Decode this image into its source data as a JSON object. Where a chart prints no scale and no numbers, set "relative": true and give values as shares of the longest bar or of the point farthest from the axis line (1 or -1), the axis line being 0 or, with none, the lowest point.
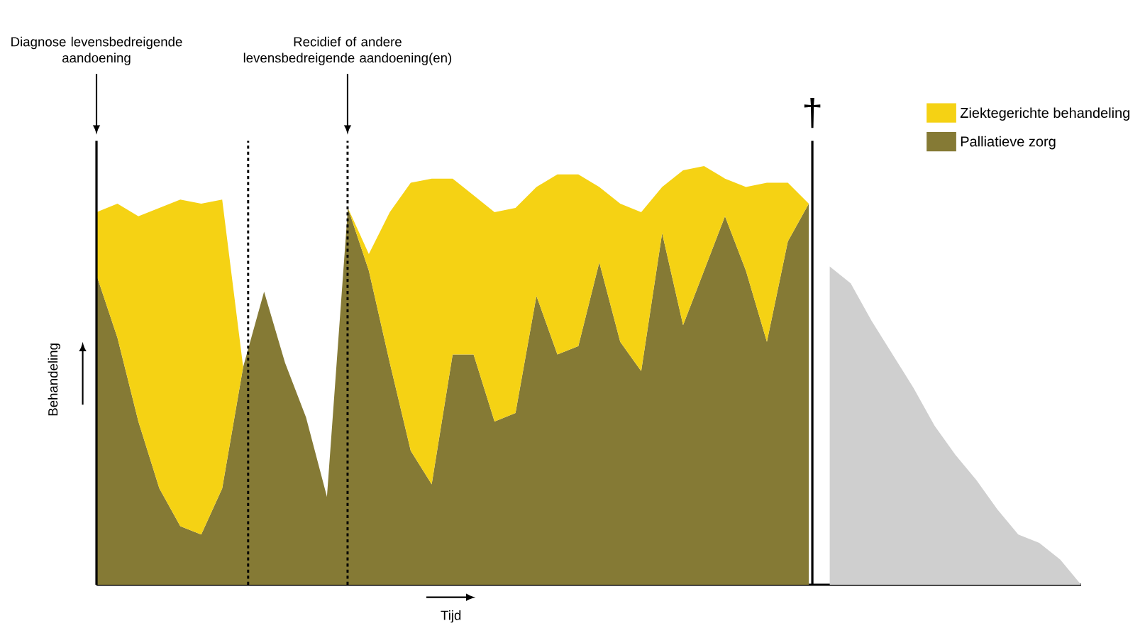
{
  "chart_data": {
    "type": "area",
    "relative": true,
    "stacked": true,
    "legend": "top right",
    "xlabel": "Tijd",
    "ylabel": "Behandeling",
    "categories": [
      null,
      null,
      null,
      null,
      null,
      null,
      null,
      null,
      null,
      null,
      null,
      null,
      null,
      null,
      null,
      null,
      null,
      null,
      null,
      null,
      null,
      null,
      null,
      null,
      null,
      null,
      null,
      null,
      null,
      null,
      null,
      null,
      null,
      null,
      null,
      null,
      null,
      null,
      null,
      null,
      null,
      null,
      null,
      null,
      null,
      null,
      null,
      null
    ],
    "series": [
      {
        "name": "Palliatieve zorg",
        "color": "#857a35",
        "values": [
          0.74,
          0.59,
          0.39,
          0.23,
          0.14,
          0.12,
          0.23,
          0.52,
          0.7,
          0.53,
          0.4,
          0.21,
          0.9,
          0.75,
          0.53,
          0.32,
          0.24,
          0.55,
          0.55,
          0.39,
          0.41,
          0.69,
          0.55,
          0.57,
          0.77,
          0.58,
          0.51,
          0.84,
          0.62,
          0.75,
          0.88,
          0.75,
          0.58,
          0.82,
          0.91,
          null,
          null,
          null,
          null,
          null,
          null,
          null,
          null,
          null,
          null,
          null,
          null,
          null
        ]
      },
      {
        "name": "Ziektegerichte behandeling",
        "color": "#f5d214",
        "values": [
          0.15,
          0.32,
          0.49,
          0.67,
          0.78,
          0.79,
          0.69,
          0,
          0,
          0,
          0,
          0,
          0,
          0.04,
          0.36,
          0.64,
          0.73,
          0.42,
          0.38,
          0.5,
          0.49,
          0.26,
          0.43,
          0.41,
          0.18,
          0.33,
          0.38,
          0.11,
          0.37,
          0.25,
          0.09,
          0.2,
          0.38,
          0.14,
          0,
          null,
          null,
          null,
          null,
          null,
          null,
          null,
          null,
          null,
          null,
          null,
          null,
          null
        ]
      },
      {
        "color": "#cfcfcf",
        "values": [
          null,
          null,
          null,
          null,
          null,
          null,
          null,
          null,
          null,
          null,
          null,
          null,
          null,
          null,
          null,
          null,
          null,
          null,
          null,
          null,
          null,
          null,
          null,
          null,
          null,
          null,
          null,
          null,
          null,
          null,
          null,
          null,
          null,
          null,
          null,
          0.76,
          0.72,
          0.63,
          0.55,
          0.47,
          0.38,
          0.31,
          0.25,
          0.18,
          0.12,
          0.1,
          0.06,
          0
        ]
      }
    ],
    "annotations": [
      "Diagnose levensbedreigende aandoening",
      "Recidief of andere levensbedreigende aandoening(en)",
      "†"
    ]
  }
}
